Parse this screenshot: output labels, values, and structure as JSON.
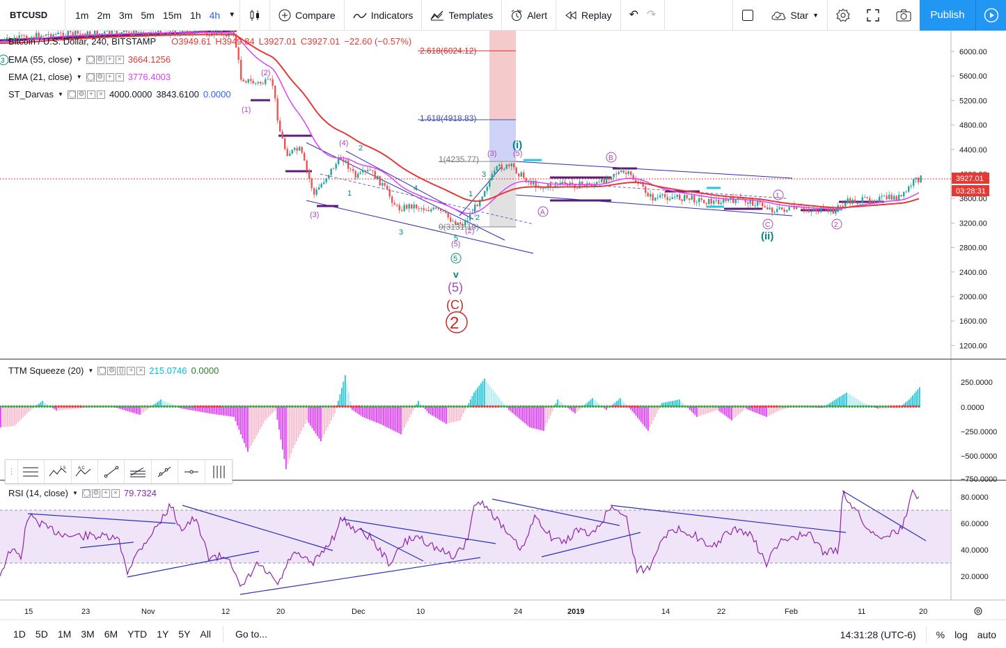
{
  "toolbar": {
    "symbol": "BTCUSD",
    "intervals": [
      "1m",
      "2m",
      "3m",
      "5m",
      "15m",
      "1h",
      "4h"
    ],
    "active_interval": "4h",
    "compare_label": "Compare",
    "indicators_label": "Indicators",
    "templates_label": "Templates",
    "alert_label": "Alert",
    "replay_label": "Replay",
    "star_label": "Star",
    "publish_label": "Publish"
  },
  "legend": {
    "title": "Bitcoin / U.S. Dollar, 240, BITSTAMP",
    "open": "O3949.61",
    "high": "H3949.84",
    "low": "L3927.01",
    "close": "C3927.01",
    "change": "−22.60 (−0.57%)",
    "ema55_name": "EMA (55, close)",
    "ema55_value": "3664.1256",
    "ema21_name": "EMA (21, close)",
    "ema21_value": "3776.4003",
    "darvas_name": "ST_Darvas",
    "darvas_v1": "4000.0000",
    "darvas_v2": "3843.6100",
    "darvas_v3": "0.0000",
    "ttm_name": "TTM Squeeze (20)",
    "ttm_v1": "215.0746",
    "ttm_v2": "0.0000",
    "rsi_name": "RSI (14, close)",
    "rsi_value": "79.7324"
  },
  "price_axis": {
    "labels": [
      "6000.00",
      "5600.00",
      "5200.00",
      "4800.00",
      "4400.00",
      "4000.00",
      "3600.00",
      "3200.00",
      "2800.00",
      "2400.00",
      "2000.00",
      "1600.00",
      "1200.00"
    ],
    "current_price": "3927.01",
    "countdown": "03:28:31"
  },
  "ttm_axis": {
    "labels": [
      "250.0000",
      "0.0000",
      "−250.0000",
      "−500.0000",
      "−750.0000"
    ]
  },
  "rsi_axis": {
    "labels": [
      "80.0000",
      "60.0000",
      "40.0000",
      "20.0000"
    ]
  },
  "time_axis": {
    "labels": [
      "15",
      "23",
      "Nov",
      "12",
      "20",
      "Dec",
      "10",
      "24",
      "2019",
      "14",
      "22",
      "Feb",
      "11",
      "20"
    ]
  },
  "fib": {
    "l2618": "2.618(6024.12)",
    "l1618": "1.618(4918.83)",
    "l1": "1(4235.77)",
    "l0": "0(3131.19)"
  },
  "wave_labels": {
    "w1": "(1)",
    "w2": "(2)",
    "w3": "(3)",
    "w4": "(4)",
    "w5": "(5)",
    "n1": "1",
    "n2": "2",
    "n3": "3",
    "n4": "4",
    "n5": "5",
    "big_v": "v",
    "big5": "(5)",
    "bigC": "(C)",
    "big2": "2",
    "wi": "(i)",
    "wii": "(ii)",
    "A": "A",
    "B": "B",
    "C": "C",
    "c1": "1",
    "c2": "2",
    "c5": "5",
    "c3": "3"
  },
  "bottombar": {
    "ranges": [
      "1D",
      "5D",
      "1M",
      "3M",
      "6M",
      "YTD",
      "1Y",
      "5Y",
      "All"
    ],
    "goto_label": "Go to...",
    "clock": "14:31:28 (UTC-6)",
    "percent": "%",
    "log": "log",
    "auto": "auto"
  },
  "colors": {
    "ema55": "#e53935",
    "ema21": "#e040fb",
    "up": "#26a69a",
    "down": "#ef5350",
    "trend": "#2a2fb8",
    "rsi": "#8e24aa",
    "wave": "#ab47bc",
    "accent": "#2962ff"
  }
}
